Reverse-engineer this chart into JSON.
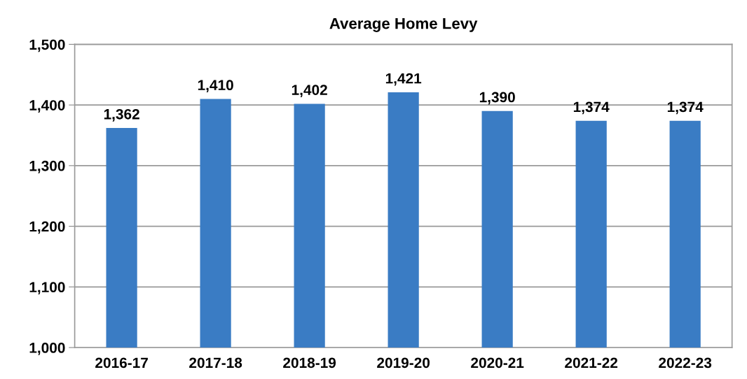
{
  "chart_data": {
    "type": "bar",
    "title": "Average Home Levy",
    "categories": [
      "2016-17",
      "2017-18",
      "2018-19",
      "2019-20",
      "2020-21",
      "2021-22",
      "2022-23"
    ],
    "values": [
      1362,
      1410,
      1402,
      1421,
      1390,
      1374,
      1374
    ],
    "value_labels": [
      "1,362",
      "1,410",
      "1,402",
      "1,421",
      "1,390",
      "1,374",
      "1,374"
    ],
    "color": "#3a7cc4",
    "ylim": [
      1000,
      1500
    ],
    "yticks": [
      {
        "value": 1000,
        "label": "1,000"
      },
      {
        "value": 1100,
        "label": "1,100"
      },
      {
        "value": 1200,
        "label": "1,200"
      },
      {
        "value": 1300,
        "label": "1,300"
      },
      {
        "value": 1400,
        "label": "1,400"
      },
      {
        "value": 1500,
        "label": "1,500"
      }
    ],
    "grid": "y"
  }
}
